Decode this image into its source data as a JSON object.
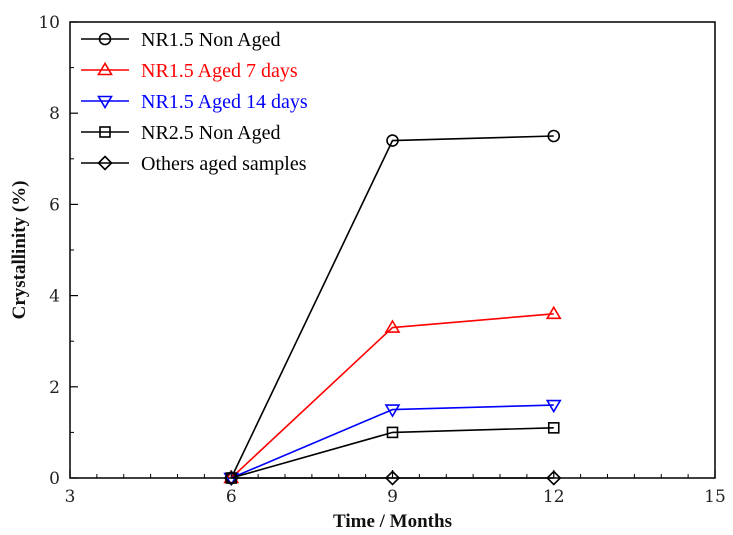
{
  "chart_data": {
    "type": "line",
    "xlabel": "Time / Months",
    "ylabel": "Crystallinity (%)",
    "xlim": [
      3,
      15
    ],
    "ylim": [
      0,
      10
    ],
    "xticks": [
      "3",
      "6",
      "9",
      "12",
      "15"
    ],
    "yticks": [
      "0",
      "2",
      "4",
      "6",
      "8",
      "10"
    ],
    "x_minor_step": 0.5,
    "y_minor_step": 1,
    "grid": false,
    "legend_position": "top-left",
    "series": [
      {
        "name": "NR1.5 Non Aged",
        "color": "#000000",
        "marker": "circle",
        "x": [
          6,
          9,
          12
        ],
        "y": [
          0,
          7.4,
          7.5
        ]
      },
      {
        "name": "NR1.5 Aged 7 days",
        "color": "#ff0000",
        "marker": "triangle-up",
        "x": [
          6,
          9,
          12
        ],
        "y": [
          0,
          3.3,
          3.6
        ]
      },
      {
        "name": "NR1.5 Aged 14 days",
        "color": "#0000ff",
        "marker": "triangle-down",
        "x": [
          6,
          9,
          12
        ],
        "y": [
          0,
          1.5,
          1.6
        ]
      },
      {
        "name": "NR2.5 Non Aged",
        "color": "#000000",
        "marker": "square",
        "x": [
          6,
          9,
          12
        ],
        "y": [
          0,
          1.0,
          1.1
        ]
      },
      {
        "name": "Others aged samples",
        "color": "#000000",
        "marker": "diamond",
        "x": [
          6,
          9,
          12
        ],
        "y": [
          0,
          0,
          0
        ]
      }
    ]
  }
}
